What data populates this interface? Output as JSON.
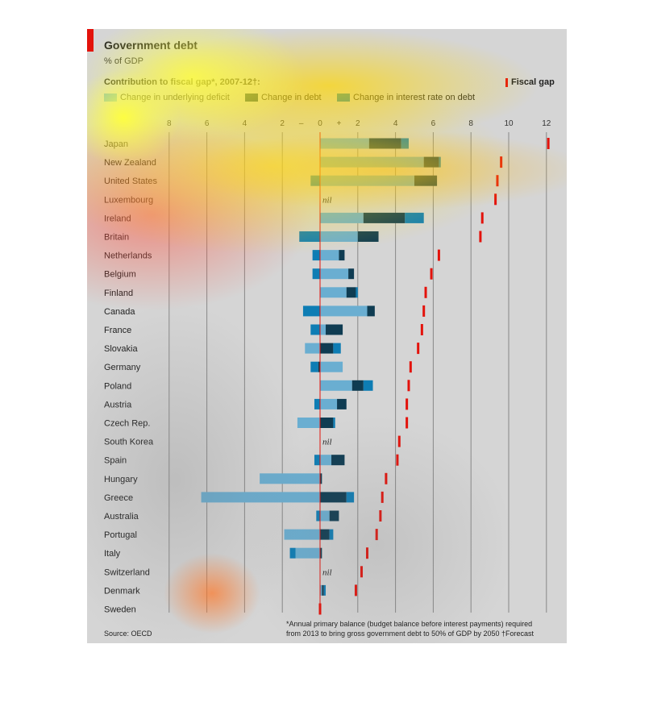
{
  "header": {
    "title": "Government debt",
    "subtitle": "% of GDP",
    "section": "Contribution to fiscal gap*, 2007-12†:",
    "fiscal_gap_label": "Fiscal gap"
  },
  "legend": [
    {
      "label": "Change in underlying deficit",
      "color": "#6aaed1"
    },
    {
      "label": "Change in debt",
      "color": "#0f3c52"
    },
    {
      "label": "Change in interest rate on debt",
      "color": "#0e7db4"
    }
  ],
  "colors": {
    "deficit": "#6aaed1",
    "debt": "#0f3c52",
    "interest": "#0e7db4",
    "fiscal_gap": "#e3120b"
  },
  "footer": {
    "source": "Source: OECD",
    "note_line1": "*Annual primary balance (budget balance before interest payments) required",
    "note_line2": "from 2013 to bring gross government debt to 50% of GDP by 2050",
    "note_forecast": "†Forecast"
  },
  "chart_data": {
    "type": "bar",
    "title": "Government debt",
    "subtitle": "% of GDP",
    "xlim": [
      -8,
      12
    ],
    "x_ticks": [
      {
        "value": -8,
        "label": "8"
      },
      {
        "value": -6,
        "label": "6"
      },
      {
        "value": -4,
        "label": "4"
      },
      {
        "value": -2,
        "label": "2"
      },
      {
        "value": -1,
        "label": "–"
      },
      {
        "value": 0,
        "label": "0"
      },
      {
        "value": 1,
        "label": "+"
      },
      {
        "value": 2,
        "label": "2"
      },
      {
        "value": 4,
        "label": "4"
      },
      {
        "value": 6,
        "label": "6"
      },
      {
        "value": 8,
        "label": "8"
      },
      {
        "value": 10,
        "label": "10"
      },
      {
        "value": 12,
        "label": "12"
      }
    ],
    "nil_label": "nil",
    "categories": [
      "Japan",
      "New Zealand",
      "United States",
      "Luxembourg",
      "Ireland",
      "Britain",
      "Netherlands",
      "Belgium",
      "Finland",
      "Canada",
      "France",
      "Slovakia",
      "Germany",
      "Poland",
      "Austria",
      "Czech Rep.",
      "South Korea",
      "Spain",
      "Hungary",
      "Greece",
      "Australia",
      "Portugal",
      "Italy",
      "Switzerland",
      "Denmark",
      "Sweden"
    ],
    "series": [
      {
        "name": "Change in underlying deficit",
        "values": [
          2.6,
          5.5,
          5.0,
          0,
          2.3,
          2.0,
          1.0,
          1.5,
          1.4,
          2.5,
          0.3,
          -0.8,
          1.2,
          1.7,
          0.9,
          -1.2,
          0,
          0.6,
          -3.2,
          -6.3,
          0.5,
          -1.9,
          -1.3,
          0,
          0.1,
          0
        ]
      },
      {
        "name": "Change in debt",
        "values": [
          1.7,
          0.8,
          1.2,
          0,
          2.2,
          1.1,
          0.3,
          0.3,
          0.5,
          0.4,
          0.9,
          0.7,
          -0.1,
          0.6,
          0.5,
          0.7,
          0,
          0.7,
          0.1,
          1.4,
          0.5,
          0.5,
          0.1,
          0,
          0.1,
          0
        ]
      },
      {
        "name": "Change in interest rate on debt",
        "values": [
          0.4,
          0.1,
          -0.5,
          0,
          1.0,
          -1.1,
          -0.4,
          -0.4,
          0.1,
          -0.9,
          -0.5,
          0.4,
          -0.4,
          0.5,
          -0.3,
          0.1,
          0,
          -0.3,
          0,
          0.4,
          -0.2,
          0.2,
          -0.3,
          0,
          0.1,
          0
        ]
      },
      {
        "name": "Fiscal gap",
        "values": [
          12.1,
          9.6,
          9.4,
          9.3,
          8.6,
          8.5,
          6.3,
          5.9,
          5.6,
          5.5,
          5.4,
          5.2,
          4.8,
          4.7,
          4.6,
          4.6,
          4.2,
          4.1,
          3.5,
          3.3,
          3.2,
          3.0,
          2.5,
          2.2,
          1.9,
          0
        ]
      }
    ]
  }
}
